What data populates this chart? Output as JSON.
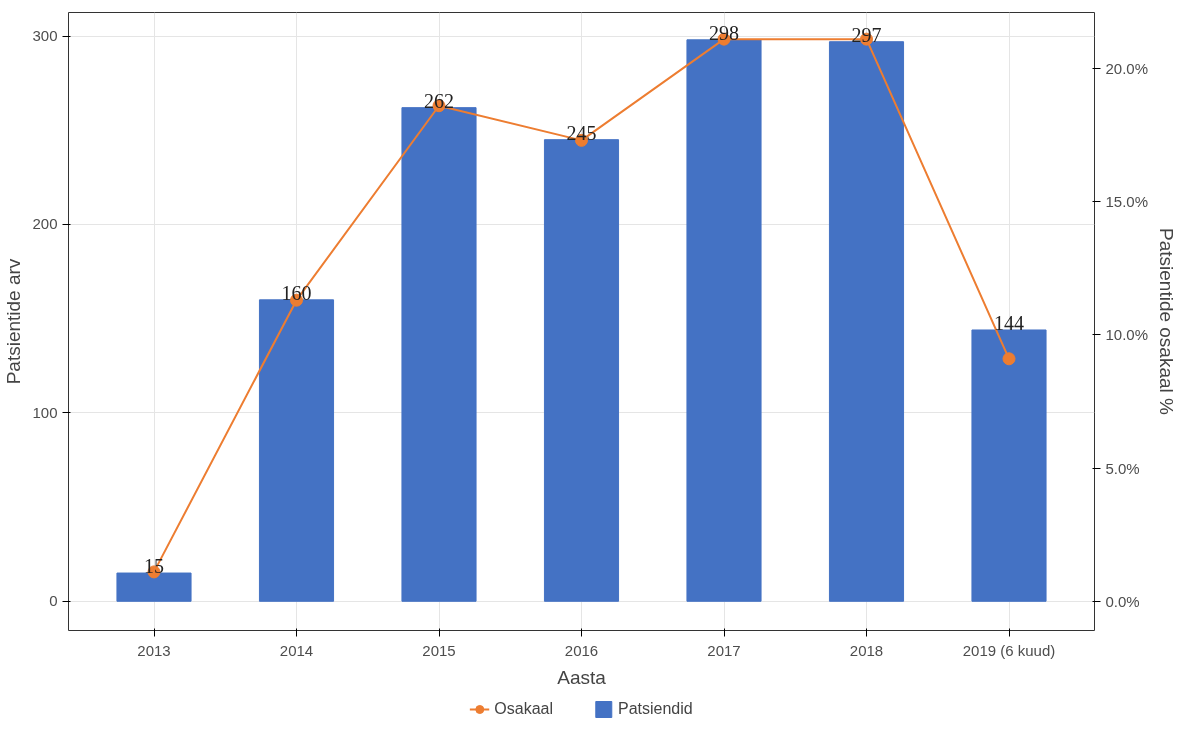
{
  "chart_data": {
    "type": "bar",
    "xlabel": "Aasta",
    "ylabel": "Patsientide arv",
    "y2label": "Patsientide osakaal %",
    "categories": [
      "2013",
      "2014",
      "2015",
      "2016",
      "2017",
      "2018",
      "2019 (6 kuud)"
    ],
    "series": [
      {
        "name": "Patsiendid",
        "color": "#4472c4",
        "values": [
          15,
          160,
          262,
          245,
          298,
          297,
          144
        ],
        "data_labels": true
      },
      {
        "name": "Osakaal",
        "type": "line",
        "axis": "y2",
        "color": "#ed7d31",
        "marker": "circle",
        "values": [
          1.1,
          11.3,
          18.6,
          17.3,
          21.1,
          21.1,
          9.1
        ]
      }
    ],
    "ylim": [
      -15.5,
      312.5
    ],
    "yticks": [
      0,
      100,
      200,
      300
    ],
    "y2lim": [
      -1.1,
      22.1
    ],
    "y2ticks": [
      {
        "value": 0,
        "label": "0.0%"
      },
      {
        "value": 5,
        "label": "5.0%"
      },
      {
        "value": 10,
        "label": "10.0%"
      },
      {
        "value": 15,
        "label": "15.0%"
      },
      {
        "value": 20,
        "label": "20.0%"
      }
    ],
    "grid": true,
    "legend": "bottom"
  }
}
